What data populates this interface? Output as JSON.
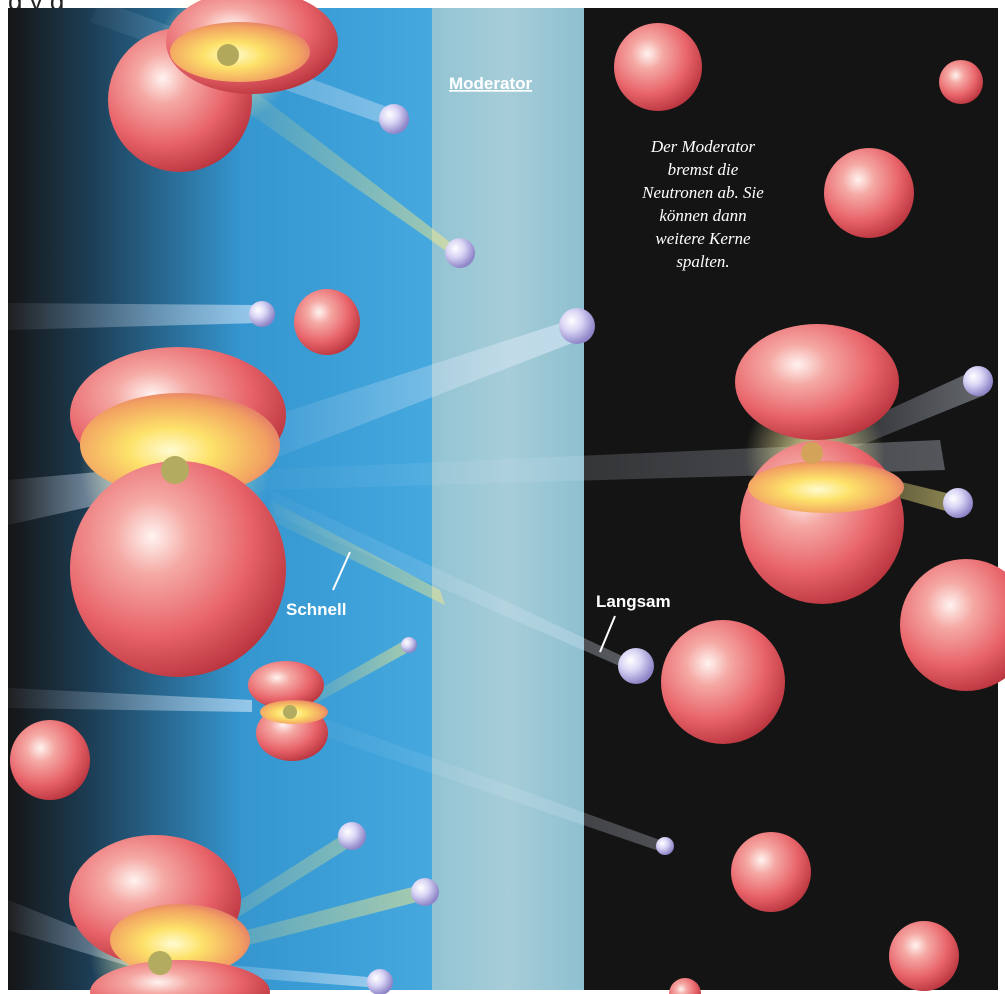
{
  "header_text": "g                                                          y       g",
  "labels": {
    "moderator": "Moderator",
    "fast": "Schnell",
    "slow": "Langsam"
  },
  "description_lines": [
    "Der Moderator",
    "bremst die",
    "Neutronen ab. Sie",
    "können dann",
    "weitere Kerne",
    "spalten."
  ],
  "colors": {
    "background": "#141414",
    "fast_zone": "#3a9fd8",
    "moderator": "#a9d8e6",
    "nucleus": "#e8646a",
    "neutron": "#c7c3ee"
  }
}
